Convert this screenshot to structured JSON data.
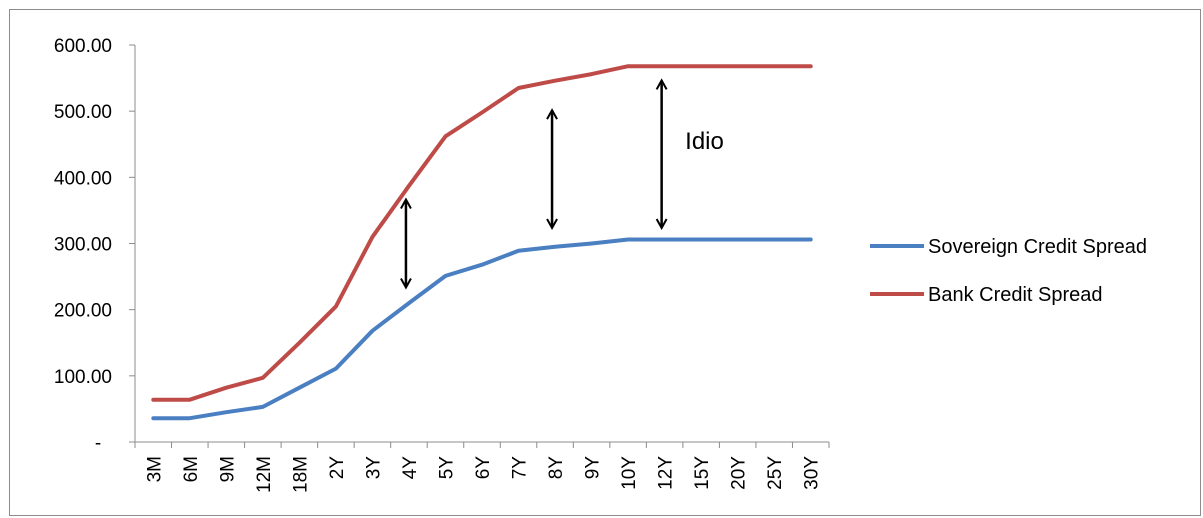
{
  "chart_data": {
    "type": "line",
    "categories": [
      "3M",
      "6M",
      "9M",
      "12M",
      "18M",
      "2Y",
      "3Y",
      "4Y",
      "5Y",
      "6Y",
      "7Y",
      "8Y",
      "9Y",
      "10Y",
      "12Y",
      "15Y",
      "20Y",
      "25Y",
      "30Y"
    ],
    "series": [
      {
        "name": "Sovereign Credit Spread",
        "color": "#4a7fc1",
        "values": [
          36,
          36,
          45,
          53,
          82,
          111,
          168,
          210,
          251,
          268,
          289,
          295,
          300,
          306,
          306,
          306,
          306,
          306,
          306
        ]
      },
      {
        "name": "Bank Credit Spread",
        "color": "#be4b48",
        "values": [
          64,
          64,
          82,
          97,
          150,
          205,
          310,
          387,
          462,
          498,
          535,
          546,
          556,
          568,
          568,
          568,
          568,
          568,
          568
        ]
      }
    ],
    "y_ticks": [
      {
        "value": 0,
        "label": "-"
      },
      {
        "value": 100,
        "label": "100.00"
      },
      {
        "value": 200,
        "label": "200.00"
      },
      {
        "value": 300,
        "label": "300.00"
      },
      {
        "value": 400,
        "label": "400.00"
      },
      {
        "value": 500,
        "label": "500.00"
      },
      {
        "value": 600,
        "label": "600.00"
      }
    ],
    "ylim": [
      0,
      600
    ],
    "grid": false,
    "legend_position": "right",
    "annotations": [
      {
        "type": "double-arrow",
        "x_category": "4Y",
        "y_from": 235,
        "y_to": 365
      },
      {
        "type": "double-arrow",
        "x_category": "8Y",
        "y_from": 325,
        "y_to": 500
      },
      {
        "type": "double-arrow",
        "x_category": "12Y",
        "y_from": 325,
        "y_to": 545
      },
      {
        "type": "text",
        "text": "Idio",
        "x_category": "15Y",
        "y": 455
      }
    ]
  }
}
